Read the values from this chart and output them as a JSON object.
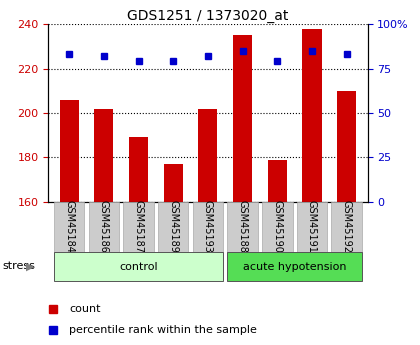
{
  "title": "GDS1251 / 1373020_at",
  "categories": [
    "GSM45184",
    "GSM45186",
    "GSM45187",
    "GSM45189",
    "GSM45193",
    "GSM45188",
    "GSM45190",
    "GSM45191",
    "GSM45192"
  ],
  "count_values": [
    206,
    202,
    189,
    177,
    202,
    235,
    179,
    238,
    210
  ],
  "percentile_values": [
    83,
    82,
    79,
    79,
    82,
    85,
    79,
    85,
    83
  ],
  "ylim_left": [
    160,
    240
  ],
  "ylim_right": [
    0,
    100
  ],
  "yticks_left": [
    160,
    180,
    200,
    220,
    240
  ],
  "yticks_right": [
    0,
    25,
    50,
    75,
    100
  ],
  "bar_color": "#cc0000",
  "dot_color": "#0000cc",
  "bar_bottom": 160,
  "group_info": [
    {
      "label": "control",
      "start": 0,
      "end": 4,
      "color": "#ccffcc"
    },
    {
      "label": "acute hypotension",
      "start": 5,
      "end": 8,
      "color": "#55dd55"
    }
  ],
  "stress_label": "stress",
  "legend_count_label": "count",
  "legend_percentile_label": "percentile rank within the sample",
  "title_fontsize": 10,
  "tick_fontsize": 8,
  "label_fontsize": 7,
  "group_fontsize": 8
}
